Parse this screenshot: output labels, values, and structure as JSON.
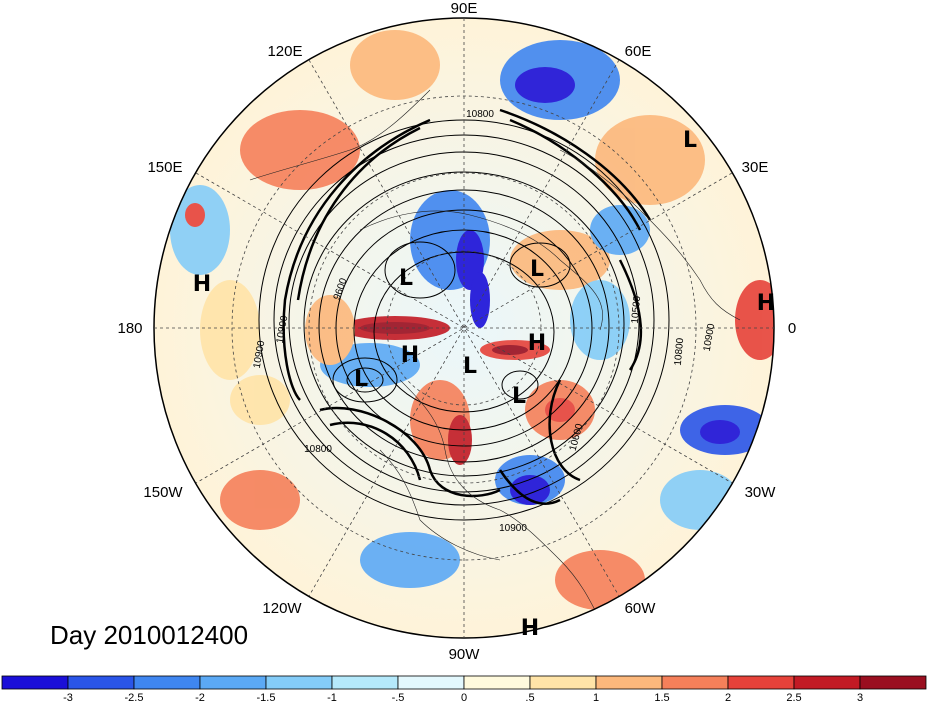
{
  "title": "Day 2010012400",
  "longitude_labels": [
    "90E",
    "60E",
    "30E",
    "0",
    "30W",
    "60W",
    "90W",
    "120W",
    "150W",
    "180",
    "150E",
    "120E"
  ],
  "pressure_systems": [
    "L",
    "L",
    "L",
    "L",
    "L",
    "L",
    "H",
    "H",
    "H",
    "H",
    "H"
  ],
  "contour_labels": [
    "10800",
    "10800",
    "10800",
    "10900",
    "10900",
    "10900",
    "10600",
    "10500",
    "9600",
    "10900"
  ],
  "colorbar": {
    "ticks": [
      "-3",
      "-2.5",
      "-2",
      "-1.5",
      "-1",
      "-.5",
      "0",
      ".5",
      "1",
      "1.5",
      "2",
      "2.5",
      "3"
    ],
    "colors": [
      "#1a0fd8",
      "#2a55e8",
      "#3f86f0",
      "#5ba9f5",
      "#84ccf8",
      "#b5e9fb",
      "#e3f8fd",
      "#fffadd",
      "#ffe4a8",
      "#fcb87c",
      "#f5805a",
      "#e6423a",
      "#c21a24",
      "#9a0f20"
    ]
  }
}
